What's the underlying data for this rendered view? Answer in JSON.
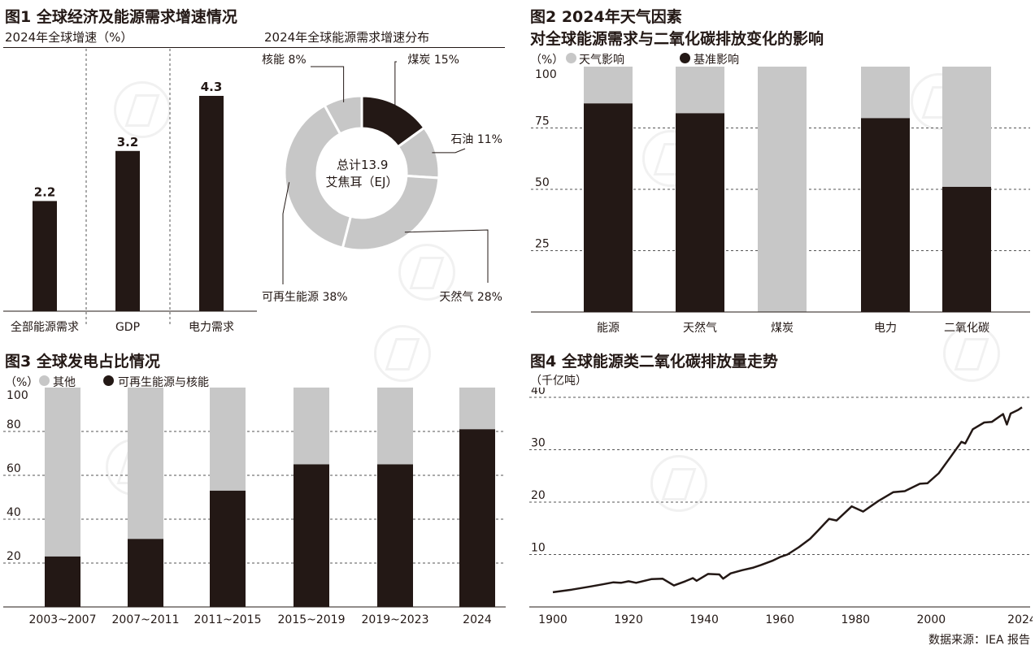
{
  "fig1": {
    "title": "图1 全球经济及能源需求增速情况",
    "bar_subtitle": "2024年全球增速（%）",
    "pie_subtitle": "2024年全球能源需求增速分布",
    "pie_center_line1": "总计13.9",
    "pie_center_line2": "艾焦耳（EJ）"
  },
  "fig2": {
    "title_line1": "图2 2024年天气因素",
    "title_line2": "对全球能源需求与二氧化碳排放变化的影响",
    "unit": "（%）",
    "legend_gray": "天气影响",
    "legend_black": "基准影响"
  },
  "fig3": {
    "title": "图3 全球发电占比情况",
    "unit": "（%）",
    "legend_gray": "其他",
    "legend_black": "可再生能源与核能"
  },
  "fig4": {
    "title": "图4 全球能源类二氧化碳排放量走势",
    "unit": "（千亿吨）"
  },
  "source": "数据来源：IEA 报告",
  "colors": {
    "black": "#231815",
    "gray": "#c7c7c7",
    "grid": "#555555"
  },
  "chart_data": [
    {
      "id": "fig1-bars",
      "type": "bar",
      "categories": [
        "全部能源需求",
        "GDP",
        "电力需求"
      ],
      "values": [
        2.2,
        3.2,
        4.3
      ],
      "data_labels": [
        "2.2",
        "3.2",
        "4.3"
      ],
      "ylim": [
        0,
        4.8
      ]
    },
    {
      "id": "fig1-pie",
      "type": "pie",
      "donut": true,
      "labels": [
        "煤炭",
        "石油",
        "天然气",
        "可再生能源",
        "核能"
      ],
      "values": [
        15,
        11,
        28,
        38,
        8
      ],
      "value_labels": [
        "15%",
        "11%",
        "28%",
        "38%",
        "8%"
      ]
    },
    {
      "id": "fig2",
      "type": "bar",
      "stacked": true,
      "categories": [
        "能源",
        "天然气",
        "煤炭",
        "电力",
        "二氧化碳"
      ],
      "series": [
        {
          "name": "基准影响",
          "values": [
            85,
            81,
            0,
            79,
            51
          ]
        },
        {
          "name": "天气影响",
          "values": [
            15,
            19,
            100,
            21,
            49
          ]
        }
      ],
      "yticks": [
        "25",
        "50",
        "75",
        "100"
      ],
      "ylim": [
        0,
        100
      ],
      "grid": true
    },
    {
      "id": "fig3",
      "type": "bar",
      "stacked": true,
      "categories": [
        "2003~2007",
        "2007~2011",
        "2011~2015",
        "2015~2019",
        "2019~2023",
        "2024"
      ],
      "series": [
        {
          "name": "可再生能源与核能",
          "values": [
            23,
            31,
            53,
            65,
            65,
            81
          ]
        },
        {
          "name": "其他",
          "values": [
            77,
            69,
            47,
            35,
            35,
            19
          ]
        }
      ],
      "yticks": [
        "20",
        "40",
        "60",
        "80",
        "100"
      ],
      "ylim": [
        0,
        100
      ],
      "grid": true
    },
    {
      "id": "fig4",
      "type": "line",
      "x": [
        1900,
        1905,
        1910,
        1913,
        1916,
        1918,
        1920,
        1922,
        1926,
        1929,
        1932,
        1935,
        1937,
        1938,
        1941,
        1944,
        1945,
        1947,
        1950,
        1953,
        1955,
        1958,
        1960,
        1962,
        1965,
        1968,
        1970,
        1973,
        1975,
        1979,
        1982,
        1986,
        1990,
        1993,
        1997,
        1999,
        2002,
        2005,
        2008,
        2009,
        2011,
        2014,
        2016,
        2019,
        2020,
        2021,
        2023,
        2024
      ],
      "y": [
        2.8,
        3.3,
        3.9,
        4.3,
        4.7,
        4.6,
        4.9,
        4.6,
        5.3,
        5.4,
        4.1,
        4.9,
        5.5,
        5.0,
        6.3,
        6.2,
        5.4,
        6.4,
        7.0,
        7.5,
        8.0,
        8.8,
        9.5,
        10.0,
        11.4,
        13.0,
        14.5,
        16.8,
        16.5,
        19.2,
        18.2,
        20.2,
        21.9,
        22.1,
        23.5,
        23.6,
        25.5,
        28.5,
        31.5,
        31.2,
        33.9,
        35.2,
        35.3,
        36.8,
        34.8,
        36.9,
        37.6,
        38.1
      ],
      "xticks": [
        1900,
        1920,
        1940,
        1960,
        1980,
        2000,
        2024
      ],
      "yticks": [
        10,
        20,
        30,
        40
      ],
      "xlim": [
        1900,
        2024
      ],
      "ylim": [
        0,
        40
      ],
      "grid": true
    }
  ]
}
